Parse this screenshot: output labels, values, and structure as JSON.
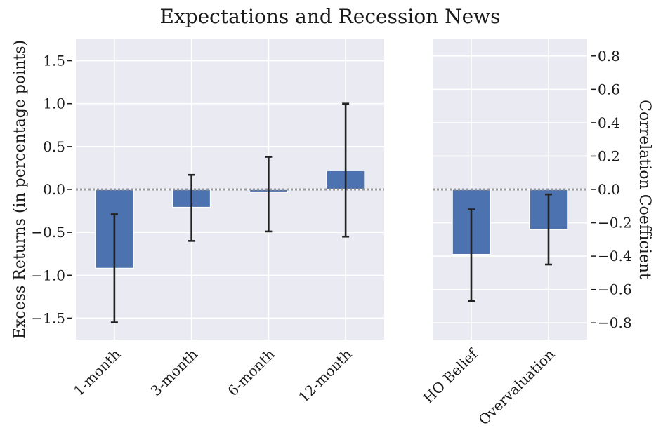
{
  "title": "Expectations and Recession News",
  "colors": {
    "bar": "#4c72b0",
    "bar_edge": "#ffffff",
    "error": "#222222",
    "background": "#eaeaf2",
    "grid": "#ffffff",
    "zero_line": "#999999"
  },
  "chart_data": [
    {
      "type": "bar",
      "ylabel": "Excess Returns (in percentage points)",
      "xlabel": "",
      "ylim": [
        -1.75,
        1.75
      ],
      "y_ticks": [
        -1.5,
        -1.0,
        -0.5,
        0.0,
        0.5,
        1.0,
        1.5
      ],
      "y_tick_labels": [
        "−1.5",
        "−1.0",
        "−0.5",
        "0.0",
        "0.5",
        "1.0",
        "1.5"
      ],
      "y_axis_side": "left",
      "categories": [
        "1-month",
        "3-month",
        "6-month",
        "12-month"
      ],
      "values": [
        -0.92,
        -0.21,
        -0.03,
        0.22
      ],
      "error_low": [
        -1.55,
        -0.6,
        -0.49,
        -0.55
      ],
      "error_high": [
        -0.29,
        0.17,
        0.38,
        1.0
      ],
      "grid": true,
      "reference_line": 0
    },
    {
      "type": "bar",
      "ylabel": "Correlation Coefficient",
      "xlabel": "",
      "ylim": [
        -0.9,
        0.9
      ],
      "y_ticks": [
        -0.8,
        -0.6,
        -0.4,
        -0.2,
        0.0,
        0.2,
        0.4,
        0.6,
        0.8
      ],
      "y_tick_labels": [
        "−0.8",
        "−0.6",
        "−0.4",
        "−0.2",
        "0.0",
        "0.2",
        "0.4",
        "0.6",
        "0.8"
      ],
      "y_axis_side": "right",
      "categories": [
        "HO Belief",
        "Overvaluation"
      ],
      "values": [
        -0.39,
        -0.24
      ],
      "error_low": [
        -0.67,
        -0.45
      ],
      "error_high": [
        -0.12,
        -0.03
      ],
      "grid": true,
      "reference_line": 0
    }
  ]
}
